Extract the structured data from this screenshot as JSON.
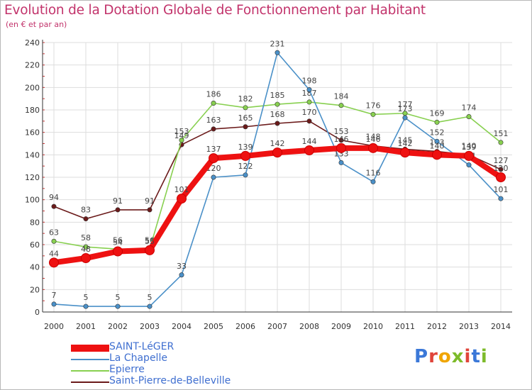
{
  "title": "Evolution de la Dotation Globale de Fonctionnement par Habitant",
  "subtitle": "(en € et par an)",
  "logo_text": "Proxiti",
  "chart_data": {
    "type": "line",
    "title": "Evolution de la Dotation Globale de Fonctionnement par Habitant",
    "subtitle": "(en € et par an)",
    "xlabel": "",
    "ylabel": "",
    "ylim": [
      0,
      240
    ],
    "yticks": [
      0,
      20,
      40,
      60,
      80,
      100,
      120,
      140,
      160,
      180,
      200,
      220,
      240
    ],
    "grid": true,
    "categories": [
      "2000",
      "2001",
      "2002",
      "2003",
      "2004",
      "2005",
      "2006",
      "2007",
      "2008",
      "2009",
      "2010",
      "2011",
      "2012",
      "2013",
      "2014"
    ],
    "series": [
      {
        "name": "Saint-Pierre-de-Belleville",
        "color": "#6b1a1a",
        "values": [
          94,
          83,
          91,
          91,
          149,
          163,
          165,
          168,
          170,
          153,
          148,
          145,
          143,
          140,
          127
        ]
      },
      {
        "name": "Epierre",
        "color": "#88d050",
        "values": [
          63,
          58,
          56,
          56,
          153,
          186,
          182,
          185,
          187,
          184,
          176,
          177,
          169,
          174,
          151
        ]
      },
      {
        "name": "La Chapelle",
        "color": "#4a90c8",
        "values": [
          7,
          5,
          5,
          5,
          33,
          120,
          122,
          231,
          198,
          133,
          116,
          173,
          152,
          131,
          101
        ]
      },
      {
        "name": "SAINT-LéGER",
        "color": "#ee1111",
        "values": [
          44,
          48,
          54,
          55,
          101,
          137,
          139,
          142,
          144,
          146,
          146,
          142,
          140,
          139,
          120
        ]
      }
    ]
  },
  "legend": [
    {
      "label": "SAINT-LéGER",
      "color": "#ee1111"
    },
    {
      "label": "La Chapelle",
      "color": "#4a90c8"
    },
    {
      "label": "Epierre",
      "color": "#88d050"
    },
    {
      "label": "Saint-Pierre-de-Belleville",
      "color": "#6b1a1a"
    }
  ]
}
